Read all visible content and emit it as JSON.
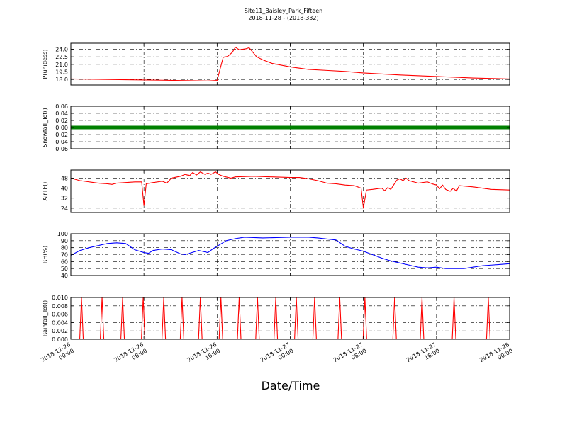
{
  "header": {
    "title": "Site11_Baisley_Park_Fifteen",
    "subtitle": "2018-11-28 - (2018-332)"
  },
  "chart_data": {
    "type": "line",
    "xlabel": "Date/Time",
    "x_range": [
      "2018-11-26 00:00",
      "2018-11-28 00:00"
    ],
    "x_ticks": [
      {
        "t": "2018-11-26 00:00",
        "label": [
          "2018-11-26",
          "00:00"
        ]
      },
      {
        "t": "2018-11-26 08:00",
        "label": [
          "2018-11-26",
          "08:00"
        ]
      },
      {
        "t": "2018-11-26 16:00",
        "label": [
          "2018-11-26",
          "16:00"
        ]
      },
      {
        "t": "2018-11-27 00:00",
        "label": [
          "2018-11-27",
          "00:00"
        ]
      },
      {
        "t": "2018-11-27 08:00",
        "label": [
          "2018-11-27",
          "08:00"
        ]
      },
      {
        "t": "2018-11-27 16:00",
        "label": [
          "2018-11-27",
          "16:00"
        ]
      },
      {
        "t": "2018-11-28 00:00",
        "label": [
          "2018-11-28",
          "00:00"
        ]
      }
    ],
    "grid": true,
    "panels": [
      {
        "ylabel": "P(unitless)",
        "ylim": [
          16.9,
          25.2
        ],
        "yticks": [
          18.0,
          19.5,
          21.0,
          22.5,
          24.0
        ],
        "ytick_labels": [
          "18.0",
          "19.5",
          "21.0",
          "22.5",
          "24.0"
        ],
        "color": "#ff0000",
        "points": [
          [
            "2018-11-26 00:00",
            18.1
          ],
          [
            "2018-11-26 06:00",
            17.95
          ],
          [
            "2018-11-26 10:00",
            17.85
          ],
          [
            "2018-11-26 15:00",
            17.7
          ],
          [
            "2018-11-26 15:30",
            17.75
          ],
          [
            "2018-11-26 16:00",
            17.8
          ],
          [
            "2018-11-26 16:40",
            22.4
          ],
          [
            "2018-11-26 17:10",
            22.6
          ],
          [
            "2018-11-26 17:40",
            23.4
          ],
          [
            "2018-11-26 18:00",
            24.4
          ],
          [
            "2018-11-26 18:25",
            23.9
          ],
          [
            "2018-11-26 19:10",
            24.1
          ],
          [
            "2018-11-26 19:30",
            24.3
          ],
          [
            "2018-11-26 20:20",
            22.5
          ],
          [
            "2018-11-26 21:00",
            21.9
          ],
          [
            "2018-11-26 22:00",
            21.2
          ],
          [
            "2018-11-27 00:00",
            20.5
          ],
          [
            "2018-11-27 02:00",
            20.0
          ],
          [
            "2018-11-27 04:00",
            19.8
          ],
          [
            "2018-11-27 06:00",
            19.6
          ],
          [
            "2018-11-27 08:00",
            19.3
          ],
          [
            "2018-11-27 12:00",
            18.9
          ],
          [
            "2018-11-27 16:00",
            18.6
          ],
          [
            "2018-11-27 20:00",
            18.3
          ],
          [
            "2018-11-28 00:00",
            18.1
          ]
        ]
      },
      {
        "ylabel": "Snowfall_Tot()",
        "ylim": [
          -0.06,
          0.06
        ],
        "yticks": [
          -0.06,
          -0.04,
          -0.02,
          0.0,
          0.02,
          0.04,
          0.06
        ],
        "ytick_labels": [
          "−0.06",
          "−0.04",
          "−0.02",
          "0.00",
          "0.02",
          "0.04",
          "0.06"
        ],
        "color": "#008000",
        "points": [
          [
            "2018-11-26 00:00",
            0.0
          ],
          [
            "2018-11-28 00:00",
            0.0
          ]
        ]
      },
      {
        "ylabel": "AirTF()",
        "ylim": [
          20.5,
          54.5
        ],
        "yticks": [
          24,
          32,
          40,
          48
        ],
        "ytick_labels": [
          "24",
          "32",
          "40",
          "48"
        ],
        "color": "#ff0000",
        "points": [
          [
            "2018-11-26 00:00",
            48.0
          ],
          [
            "2018-11-26 01:00",
            46.0
          ],
          [
            "2018-11-26 02:00",
            45.0
          ],
          [
            "2018-11-26 03:00",
            44.0
          ],
          [
            "2018-11-26 04:00",
            43.5
          ],
          [
            "2018-11-26 04:30",
            43.0
          ],
          [
            "2018-11-26 05:00",
            44.0
          ],
          [
            "2018-11-26 06:00",
            44.5
          ],
          [
            "2018-11-26 07:00",
            45.0
          ],
          [
            "2018-11-26 07:45",
            45.0
          ],
          [
            "2018-11-26 08:00",
            26.0
          ],
          [
            "2018-11-26 08:15",
            43.5
          ],
          [
            "2018-11-26 09:00",
            44.5
          ],
          [
            "2018-11-26 10:00",
            45.5
          ],
          [
            "2018-11-26 10:30",
            44.0
          ],
          [
            "2018-11-26 11:00",
            48.0
          ],
          [
            "2018-11-26 12:00",
            49.5
          ],
          [
            "2018-11-26 12:30",
            51.0
          ],
          [
            "2018-11-26 13:00",
            50.0
          ],
          [
            "2018-11-26 13:20",
            52.5
          ],
          [
            "2018-11-26 13:45",
            50.5
          ],
          [
            "2018-11-26 14:10",
            53.0
          ],
          [
            "2018-11-26 14:40",
            51.0
          ],
          [
            "2018-11-26 15:00",
            52.0
          ],
          [
            "2018-11-26 15:20",
            51.0
          ],
          [
            "2018-11-26 15:50",
            53.0
          ],
          [
            "2018-11-26 16:10",
            51.0
          ],
          [
            "2018-11-26 16:40",
            49.5
          ],
          [
            "2018-11-26 17:30",
            48.0
          ],
          [
            "2018-11-26 18:00",
            49.0
          ],
          [
            "2018-11-26 20:00",
            49.5
          ],
          [
            "2018-11-26 22:00",
            49.0
          ],
          [
            "2018-11-27 00:00",
            48.5
          ],
          [
            "2018-11-27 01:00",
            48.5
          ],
          [
            "2018-11-27 02:00",
            47.5
          ],
          [
            "2018-11-27 03:00",
            46.0
          ],
          [
            "2018-11-27 04:00",
            44.0
          ],
          [
            "2018-11-27 05:00",
            43.5
          ],
          [
            "2018-11-27 06:00",
            42.5
          ],
          [
            "2018-11-27 07:00",
            42.0
          ],
          [
            "2018-11-27 07:45",
            40.0
          ],
          [
            "2018-11-27 08:00",
            24.0
          ],
          [
            "2018-11-27 08:20",
            38.5
          ],
          [
            "2018-11-27 09:00",
            39.0
          ],
          [
            "2018-11-27 10:00",
            40.0
          ],
          [
            "2018-11-27 10:20",
            38.0
          ],
          [
            "2018-11-27 10:40",
            40.5
          ],
          [
            "2018-11-27 11:00",
            39.0
          ],
          [
            "2018-11-27 11:40",
            46.5
          ],
          [
            "2018-11-27 12:00",
            47.5
          ],
          [
            "2018-11-27 12:20",
            46.0
          ],
          [
            "2018-11-27 12:40",
            48.0
          ],
          [
            "2018-11-27 13:00",
            46.0
          ],
          [
            "2018-11-27 14:00",
            44.0
          ],
          [
            "2018-11-27 15:00",
            45.0
          ],
          [
            "2018-11-27 15:30",
            43.5
          ],
          [
            "2018-11-27 16:00",
            42.5
          ],
          [
            "2018-11-27 16:20",
            39.5
          ],
          [
            "2018-11-27 16:40",
            42.5
          ],
          [
            "2018-11-27 17:00",
            39.0
          ],
          [
            "2018-11-27 17:30",
            37.5
          ],
          [
            "2018-11-27 17:50",
            40.0
          ],
          [
            "2018-11-27 18:10",
            37.5
          ],
          [
            "2018-11-27 18:30",
            42.0
          ],
          [
            "2018-11-27 20:00",
            41.0
          ],
          [
            "2018-11-27 22:00",
            39.0
          ],
          [
            "2018-11-28 00:00",
            38.5
          ]
        ]
      },
      {
        "ylabel": "RH(%)",
        "ylim": [
          40,
          100
        ],
        "yticks": [
          40,
          50,
          60,
          70,
          80,
          90,
          100
        ],
        "ytick_labels": [
          "40",
          "50",
          "60",
          "70",
          "80",
          "90",
          "100"
        ],
        "color": "#0000ff",
        "points": [
          [
            "2018-11-26 00:00",
            69
          ],
          [
            "2018-11-26 01:00",
            76
          ],
          [
            "2018-11-26 02:00",
            80
          ],
          [
            "2018-11-26 03:00",
            83
          ],
          [
            "2018-11-26 04:00",
            86
          ],
          [
            "2018-11-26 05:00",
            87
          ],
          [
            "2018-11-26 06:00",
            86
          ],
          [
            "2018-11-26 07:00",
            77
          ],
          [
            "2018-11-26 08:00",
            73
          ],
          [
            "2018-11-26 08:30",
            72
          ],
          [
            "2018-11-26 09:00",
            76
          ],
          [
            "2018-11-26 10:00",
            78
          ],
          [
            "2018-11-26 11:00",
            77
          ],
          [
            "2018-11-26 12:00",
            71
          ],
          [
            "2018-11-26 12:30",
            70
          ],
          [
            "2018-11-26 13:00",
            72
          ],
          [
            "2018-11-26 14:00",
            76
          ],
          [
            "2018-11-26 15:00",
            73
          ],
          [
            "2018-11-26 15:30",
            78
          ],
          [
            "2018-11-26 16:00",
            82
          ],
          [
            "2018-11-26 17:00",
            90
          ],
          [
            "2018-11-26 18:00",
            93
          ],
          [
            "2018-11-26 19:00",
            95
          ],
          [
            "2018-11-26 21:00",
            94
          ],
          [
            "2018-11-27 00:00",
            95
          ],
          [
            "2018-11-27 02:00",
            95
          ],
          [
            "2018-11-27 03:00",
            94
          ],
          [
            "2018-11-27 05:00",
            91
          ],
          [
            "2018-11-27 06:00",
            82
          ],
          [
            "2018-11-27 07:00",
            78
          ],
          [
            "2018-11-27 08:00",
            75
          ],
          [
            "2018-11-27 09:00",
            70
          ],
          [
            "2018-11-27 10:00",
            65
          ],
          [
            "2018-11-27 11:00",
            61
          ],
          [
            "2018-11-27 12:00",
            58
          ],
          [
            "2018-11-27 13:00",
            55
          ],
          [
            "2018-11-27 14:00",
            52
          ],
          [
            "2018-11-27 15:00",
            51
          ],
          [
            "2018-11-27 16:00",
            52
          ],
          [
            "2018-11-27 17:00",
            50
          ],
          [
            "2018-11-27 18:00",
            50
          ],
          [
            "2018-11-27 19:00",
            50
          ],
          [
            "2018-11-27 20:00",
            52
          ],
          [
            "2018-11-27 21:00",
            54
          ],
          [
            "2018-11-27 22:00",
            55
          ],
          [
            "2018-11-27 23:00",
            56
          ],
          [
            "2018-11-28 00:00",
            57
          ]
        ]
      },
      {
        "ylabel": "Rainfall_Tot()",
        "ylim": [
          0.0,
          0.01
        ],
        "yticks": [
          0.0,
          0.002,
          0.004,
          0.006,
          0.008,
          0.01
        ],
        "ytick_labels": [
          "0.000",
          "0.002",
          "0.004",
          "0.006",
          "0.008",
          "0.010"
        ],
        "color": "#ff0000",
        "spike_value": 0.01,
        "spikes": [
          "2018-11-26 01:10",
          "2018-11-26 03:25",
          "2018-11-26 05:40",
          "2018-11-26 07:55",
          "2018-11-26 10:10",
          "2018-11-26 12:10",
          "2018-11-26 14:10",
          "2018-11-26 16:25",
          "2018-11-26 18:25",
          "2018-11-26 20:25",
          "2018-11-26 22:25",
          "2018-11-27 00:40",
          "2018-11-27 02:40",
          "2018-11-27 05:25",
          "2018-11-27 08:10",
          "2018-11-27 11:25",
          "2018-11-27 14:25",
          "2018-11-27 17:55",
          "2018-11-27 21:40"
        ]
      }
    ]
  }
}
